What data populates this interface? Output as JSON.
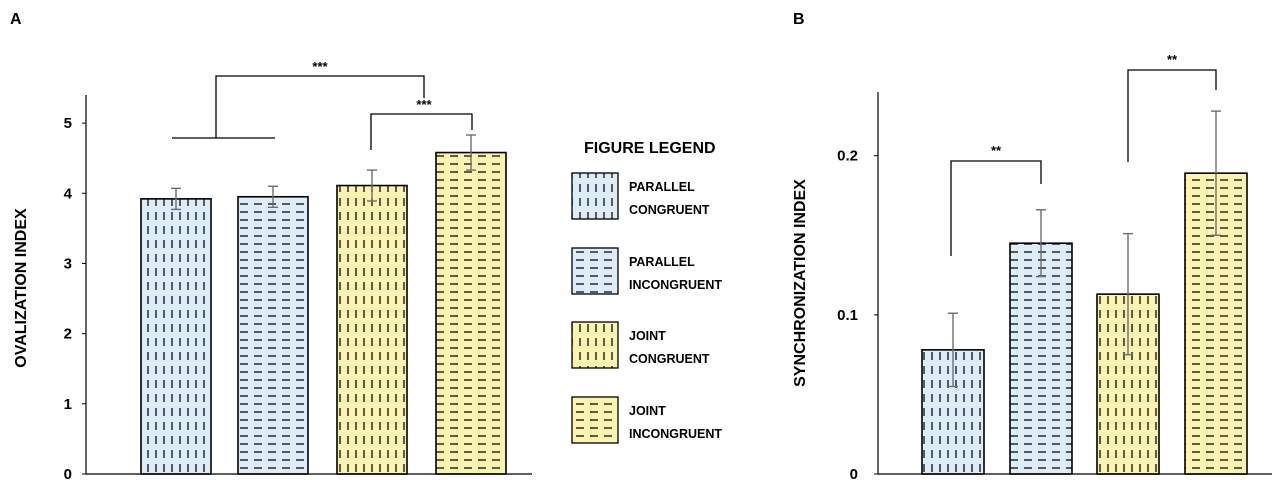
{
  "colors": {
    "blue_fill": "#dcecf8",
    "yellow_fill": "#fbf3b0",
    "stroke": "#000000",
    "error_bar": "#6e6e6e"
  },
  "legend": {
    "title": "FIGURE LEGEND",
    "items": [
      {
        "line1": "PARALLEL",
        "line2": "CONGRUENT",
        "color": "blue",
        "pattern": "vertical-dashes"
      },
      {
        "line1": "PARALLEL",
        "line2": "INCONGRUENT",
        "color": "blue",
        "pattern": "horizontal-dashes"
      },
      {
        "line1": "JOINT",
        "line2": "CONGRUENT",
        "color": "yellow",
        "pattern": "vertical-dashes"
      },
      {
        "line1": "JOINT",
        "line2": "INCONGRUENT",
        "color": "yellow",
        "pattern": "horizontal-dashes"
      }
    ]
  },
  "chart_data": [
    {
      "panel": "A",
      "type": "bar",
      "ylabel": "OVALIZATION INDEX",
      "ylim": [
        0,
        5.4
      ],
      "yticks": [
        "0",
        "1",
        "2",
        "3",
        "4",
        "5"
      ],
      "categories": [
        "PARALLEL CONGRUENT",
        "PARALLEL INCONGRUENT",
        "JOINT CONGRUENT",
        "JOINT INCONGRUENT"
      ],
      "values": [
        3.92,
        3.95,
        4.11,
        4.58
      ],
      "errors": [
        0.15,
        0.15,
        0.22,
        0.25
      ],
      "significance": [
        {
          "label": "***",
          "from": "PARALLEL (both)",
          "to": "JOINT INCONGRUENT"
        },
        {
          "label": "***",
          "from": "JOINT CONGRUENT",
          "to": "JOINT INCONGRUENT"
        }
      ]
    },
    {
      "panel": "B",
      "type": "bar",
      "ylabel": "SYNCHRONIZATION INDEX",
      "ylim": [
        0,
        0.24
      ],
      "yticks": [
        "0",
        "0.1",
        "0.2"
      ],
      "categories": [
        "PARALLEL CONGRUENT",
        "PARALLEL INCONGRUENT",
        "JOINT CONGRUENT",
        "JOINT INCONGRUENT"
      ],
      "values": [
        0.078,
        0.145,
        0.113,
        0.189
      ],
      "errors": [
        0.023,
        0.021,
        0.038,
        0.039
      ],
      "significance": [
        {
          "label": "**",
          "from": "PARALLEL CONGRUENT",
          "to": "PARALLEL INCONGRUENT"
        },
        {
          "label": "**",
          "from": "JOINT CONGRUENT",
          "to": "JOINT INCONGRUENT"
        }
      ]
    }
  ]
}
